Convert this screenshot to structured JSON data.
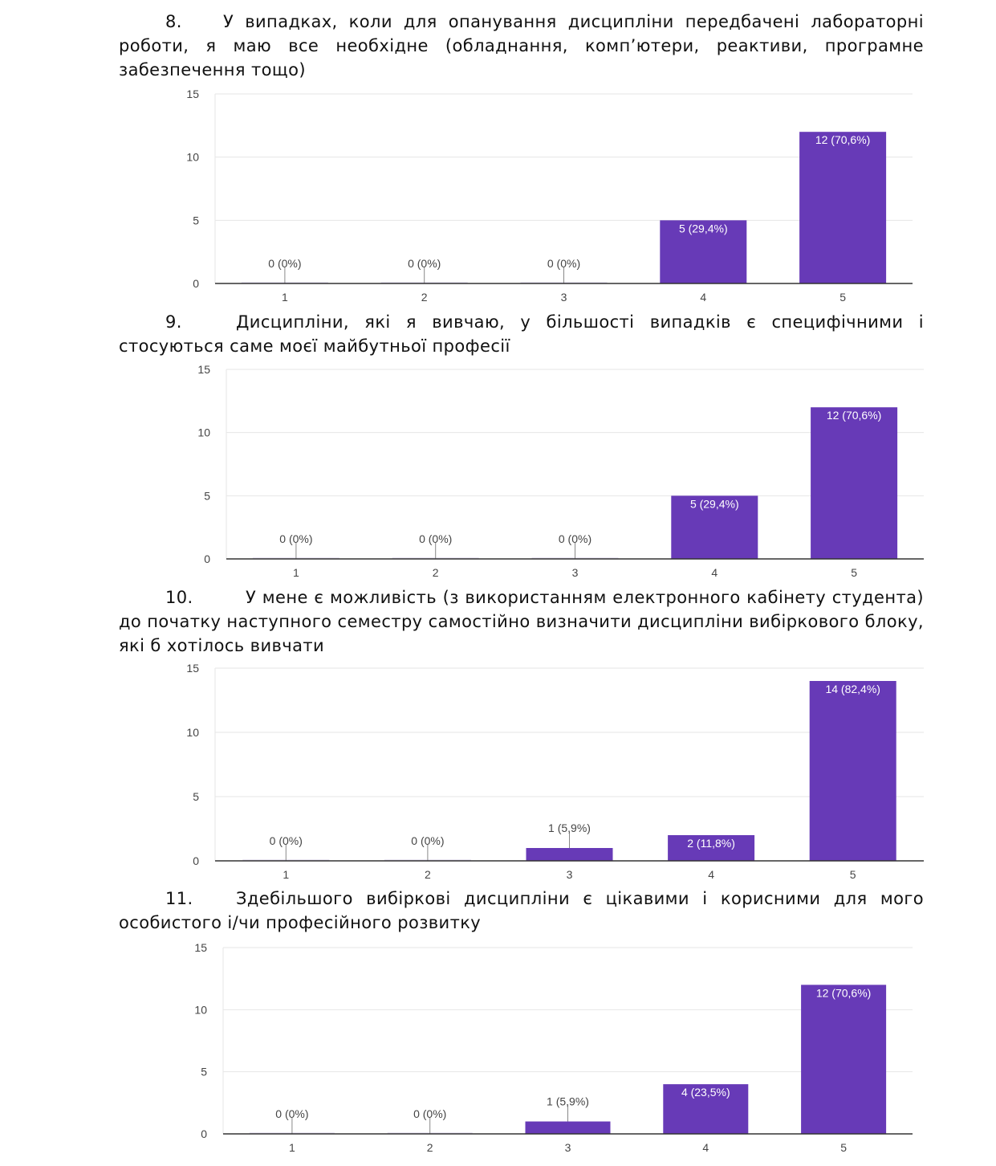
{
  "colors": {
    "bar": "#673ab7",
    "grid": "#e6e6e6",
    "axis": "#333333",
    "tick_text": "#444444",
    "label_inside": "#ffffff",
    "label_outside": "#444444"
  },
  "questions": [
    {
      "number": "8.",
      "text": "У випадках, коли для опанування дисципліни передбачені лабораторні роботи, я маю все необхідне (обладнання, комп’ютери, реактиви, програмне забезпечення тощо)"
    },
    {
      "number": "9.",
      "text": "Дисципліни, які я вивчаю, у більшості випадків є специфічними і стосуються саме моєї майбутньої професії"
    },
    {
      "number": "10.",
      "text": "У мене є можливість (з використанням електронного кабінету студента) до початку наступного семестру самостійно визначити дисципліни вибіркового блоку, які б хотілось вивчати"
    },
    {
      "number": "11.",
      "text": "Здебільшого вибіркові дисципліни є цікавими і корисними для мого особистого і/чи професійного розвитку"
    }
  ],
  "chart_data": [
    {
      "type": "bar",
      "title": "",
      "categories": [
        "1",
        "2",
        "3",
        "4",
        "5"
      ],
      "values": [
        0,
        0,
        0,
        5,
        12
      ],
      "labels": [
        "0 (0%)",
        "0 (0%)",
        "0 (0%)",
        "5 (29,4%)",
        "12 (70,6%)"
      ],
      "ylim": [
        0,
        15
      ],
      "yticks": [
        "0",
        "5",
        "10",
        "15"
      ],
      "grid": true
    },
    {
      "type": "bar",
      "title": "",
      "categories": [
        "1",
        "2",
        "3",
        "4",
        "5"
      ],
      "values": [
        0,
        0,
        0,
        5,
        12
      ],
      "labels": [
        "0 (0%)",
        "0 (0%)",
        "0 (0%)",
        "5 (29,4%)",
        "12 (70,6%)"
      ],
      "ylim": [
        0,
        15
      ],
      "yticks": [
        "0",
        "5",
        "10",
        "15"
      ],
      "grid": true
    },
    {
      "type": "bar",
      "title": "",
      "categories": [
        "1",
        "2",
        "3",
        "4",
        "5"
      ],
      "values": [
        0,
        0,
        1,
        2,
        14
      ],
      "labels": [
        "0 (0%)",
        "0 (0%)",
        "1 (5,9%)",
        "2 (11,8%)",
        "14 (82,4%)"
      ],
      "ylim": [
        0,
        15
      ],
      "yticks": [
        "0",
        "5",
        "10",
        "15"
      ],
      "grid": true
    },
    {
      "type": "bar",
      "title": "",
      "categories": [
        "1",
        "2",
        "3",
        "4",
        "5"
      ],
      "values": [
        0,
        0,
        1,
        4,
        12
      ],
      "labels": [
        "0 (0%)",
        "0 (0%)",
        "1 (5,9%)",
        "4 (23,5%)",
        "12 (70,6%)"
      ],
      "ylim": [
        0,
        15
      ],
      "yticks": [
        "0",
        "5",
        "10",
        "15"
      ],
      "grid": true
    }
  ]
}
